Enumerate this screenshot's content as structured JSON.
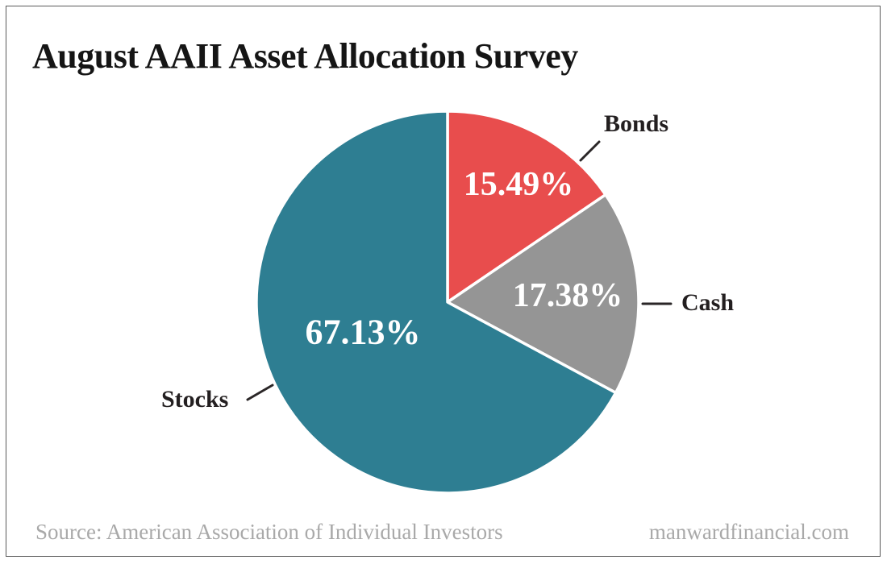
{
  "title": "August AAII Asset Allocation Survey",
  "footer": {
    "source": "Source: American Association of Individual Investors",
    "site": "manwardfinancial.com"
  },
  "colors": {
    "frame_border": "#5a5a5a",
    "title_text": "#151515",
    "category_label_text": "#231f20",
    "footer_text": "#a9a9a9",
    "value_label_text": "#ffffff",
    "slice_separator": "#ffffff",
    "leader_line": "#2a2627"
  },
  "chart_data": {
    "type": "pie",
    "title": "August AAII Asset Allocation Survey",
    "start_angle_deg": 0,
    "direction": "clockwise",
    "slices": [
      {
        "label": "Bonds",
        "value": 15.49,
        "display": "15.49%",
        "color": "#e84d4d"
      },
      {
        "label": "Cash",
        "value": 17.38,
        "display": "17.38%",
        "color": "#959595"
      },
      {
        "label": "Stocks",
        "value": 67.13,
        "display": "67.13%",
        "color": "#2e7e92"
      }
    ],
    "value_labels_inside": true,
    "category_labels_outside": true,
    "legend": "none",
    "source": "Source: American Association of Individual Investors",
    "website": "manwardfinancial.com"
  }
}
